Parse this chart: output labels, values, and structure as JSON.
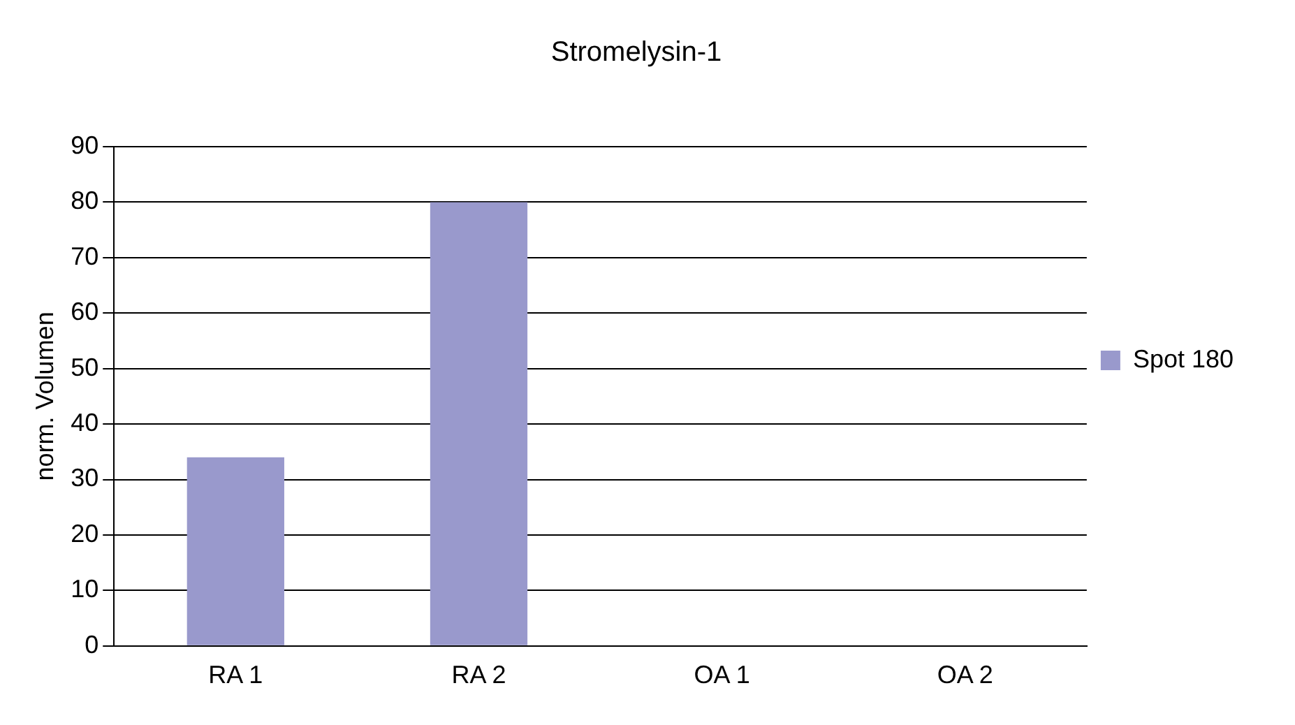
{
  "chart_data": {
    "type": "bar",
    "title": "Stromelysin-1",
    "ylabel": "norm. Volumen",
    "categories": [
      "RA 1",
      "RA 2",
      "OA 1",
      "OA 2"
    ],
    "series": [
      {
        "name": "Spot 180",
        "color": "#9999cc",
        "values": [
          34,
          80,
          0,
          0
        ]
      }
    ],
    "ylim": [
      0,
      90
    ],
    "yticks": [
      0,
      10,
      20,
      30,
      40,
      50,
      60,
      70,
      80,
      90
    ],
    "grid": "y",
    "legend": "right"
  }
}
